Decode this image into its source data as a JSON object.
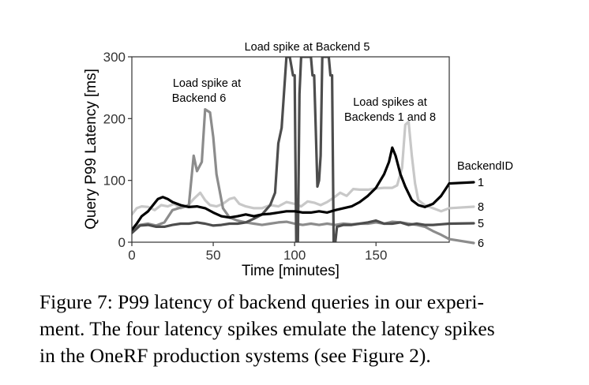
{
  "chart_data": {
    "type": "line",
    "title": "",
    "xlabel": "Time [minutes]",
    "ylabel": "Query P99 Latency [ms]",
    "xlim": [
      0,
      195
    ],
    "ylim": [
      0,
      300
    ],
    "x_ticks": [
      0,
      50,
      100,
      150
    ],
    "y_ticks": [
      0,
      100,
      200,
      300
    ],
    "grid": false,
    "legend_title": "BackendID",
    "legend_placement": "right, labels at line ends",
    "annotations": [
      {
        "text": "Load spike at Backend 5"
      },
      {
        "lines": [
          "Load spike at",
          "Backend 6"
        ]
      },
      {
        "lines": [
          "Load spikes at",
          "Backends 1 and 8"
        ]
      }
    ],
    "series": [
      {
        "name": "8",
        "color": "#c8c8c8",
        "points": [
          [
            0,
            45
          ],
          [
            3,
            55
          ],
          [
            6,
            58
          ],
          [
            10,
            57
          ],
          [
            14,
            52
          ],
          [
            18,
            60
          ],
          [
            22,
            58
          ],
          [
            26,
            62
          ],
          [
            30,
            55
          ],
          [
            34,
            58
          ],
          [
            38,
            70
          ],
          [
            42,
            80
          ],
          [
            45,
            68
          ],
          [
            48,
            60
          ],
          [
            52,
            58
          ],
          [
            56,
            62
          ],
          [
            60,
            70
          ],
          [
            63,
            72
          ],
          [
            66,
            62
          ],
          [
            70,
            58
          ],
          [
            75,
            55
          ],
          [
            80,
            55
          ],
          [
            85,
            60
          ],
          [
            90,
            58
          ],
          [
            95,
            65
          ],
          [
            100,
            62
          ],
          [
            104,
            58
          ],
          [
            108,
            66
          ],
          [
            112,
            64
          ],
          [
            116,
            60
          ],
          [
            120,
            65
          ],
          [
            124,
            72
          ],
          [
            128,
            80
          ],
          [
            132,
            75
          ],
          [
            136,
            86
          ],
          [
            140,
            85
          ],
          [
            145,
            85
          ],
          [
            150,
            87
          ],
          [
            155,
            88
          ],
          [
            160,
            88
          ],
          [
            163,
            92
          ],
          [
            166,
            120
          ],
          [
            168,
            190
          ],
          [
            170,
            195
          ],
          [
            172,
            140
          ],
          [
            174,
            95
          ],
          [
            176,
            68
          ],
          [
            180,
            60
          ],
          [
            185,
            55
          ],
          [
            190,
            50
          ],
          [
            195,
            55
          ]
        ]
      },
      {
        "name": "6",
        "color": "#8c8c8c",
        "points": [
          [
            0,
            20
          ],
          [
            5,
            28
          ],
          [
            10,
            30
          ],
          [
            15,
            27
          ],
          [
            20,
            32
          ],
          [
            25,
            52
          ],
          [
            30,
            56
          ],
          [
            35,
            60
          ],
          [
            38,
            140
          ],
          [
            40,
            115
          ],
          [
            43,
            130
          ],
          [
            45,
            215
          ],
          [
            48,
            210
          ],
          [
            50,
            170
          ],
          [
            52,
            110
          ],
          [
            56,
            55
          ],
          [
            60,
            40
          ],
          [
            65,
            35
          ],
          [
            70,
            32
          ],
          [
            75,
            30
          ],
          [
            80,
            28
          ],
          [
            85,
            30
          ],
          [
            90,
            32
          ],
          [
            95,
            33
          ],
          [
            100,
            30
          ],
          [
            105,
            28
          ],
          [
            110,
            30
          ],
          [
            115,
            28
          ],
          [
            120,
            30
          ],
          [
            125,
            28
          ],
          [
            130,
            30
          ],
          [
            135,
            29
          ],
          [
            140,
            30
          ],
          [
            145,
            30
          ],
          [
            150,
            32
          ],
          [
            155,
            30
          ],
          [
            160,
            33
          ],
          [
            165,
            32
          ],
          [
            170,
            30
          ],
          [
            175,
            28
          ],
          [
            180,
            25
          ],
          [
            185,
            18
          ],
          [
            190,
            12
          ],
          [
            195,
            5
          ]
        ]
      },
      {
        "name": "5",
        "color": "#4d4d4d",
        "points": [
          [
            0,
            15
          ],
          [
            5,
            27
          ],
          [
            10,
            28
          ],
          [
            15,
            25
          ],
          [
            20,
            25
          ],
          [
            25,
            28
          ],
          [
            30,
            30
          ],
          [
            35,
            30
          ],
          [
            40,
            32
          ],
          [
            45,
            30
          ],
          [
            50,
            27
          ],
          [
            55,
            28
          ],
          [
            60,
            30
          ],
          [
            65,
            30
          ],
          [
            70,
            32
          ],
          [
            75,
            38
          ],
          [
            80,
            45
          ],
          [
            85,
            60
          ],
          [
            88,
            80
          ],
          [
            90,
            160
          ],
          [
            92,
            185
          ],
          [
            95,
            300
          ],
          [
            97,
            300
          ],
          [
            99,
            270
          ],
          [
            100,
            270
          ],
          [
            101,
            0
          ],
          [
            102,
            0
          ],
          [
            103,
            240
          ],
          [
            104,
            300
          ],
          [
            110,
            300
          ],
          [
            111,
            270
          ],
          [
            112,
            270
          ],
          [
            113,
            180
          ],
          [
            114,
            90
          ],
          [
            115,
            100
          ],
          [
            116,
            140
          ],
          [
            117,
            300
          ],
          [
            121,
            300
          ],
          [
            122,
            270
          ],
          [
            123,
            270
          ],
          [
            124,
            0
          ],
          [
            125,
            0
          ],
          [
            126,
            25
          ],
          [
            130,
            28
          ],
          [
            135,
            28
          ],
          [
            140,
            30
          ],
          [
            145,
            32
          ],
          [
            150,
            35
          ],
          [
            155,
            30
          ],
          [
            160,
            30
          ],
          [
            165,
            32
          ],
          [
            170,
            28
          ],
          [
            175,
            30
          ],
          [
            180,
            28
          ],
          [
            185,
            28
          ],
          [
            190,
            29
          ],
          [
            195,
            30
          ]
        ]
      },
      {
        "name": "1",
        "color": "#000000",
        "points": [
          [
            0,
            20
          ],
          [
            3,
            30
          ],
          [
            6,
            42
          ],
          [
            10,
            50
          ],
          [
            13,
            60
          ],
          [
            16,
            70
          ],
          [
            19,
            73
          ],
          [
            22,
            70
          ],
          [
            25,
            65
          ],
          [
            30,
            60
          ],
          [
            35,
            57
          ],
          [
            40,
            58
          ],
          [
            45,
            55
          ],
          [
            50,
            48
          ],
          [
            55,
            42
          ],
          [
            60,
            40
          ],
          [
            65,
            42
          ],
          [
            70,
            45
          ],
          [
            75,
            42
          ],
          [
            80,
            45
          ],
          [
            85,
            46
          ],
          [
            90,
            48
          ],
          [
            95,
            50
          ],
          [
            100,
            50
          ],
          [
            105,
            48
          ],
          [
            110,
            48
          ],
          [
            115,
            50
          ],
          [
            120,
            48
          ],
          [
            125,
            52
          ],
          [
            130,
            55
          ],
          [
            135,
            58
          ],
          [
            140,
            65
          ],
          [
            145,
            75
          ],
          [
            150,
            88
          ],
          [
            155,
            110
          ],
          [
            158,
            130
          ],
          [
            160,
            153
          ],
          [
            162,
            140
          ],
          [
            165,
            110
          ],
          [
            168,
            90
          ],
          [
            172,
            68
          ],
          [
            176,
            60
          ],
          [
            180,
            57
          ],
          [
            185,
            62
          ],
          [
            190,
            75
          ],
          [
            195,
            95
          ]
        ]
      }
    ]
  },
  "caption": {
    "lines": [
      "Figure 7: P99 latency of backend queries in our experi-",
      "ment. The four latency spikes emulate the latency spikes",
      "in the OneRF production systems (see Figure 2)."
    ]
  }
}
